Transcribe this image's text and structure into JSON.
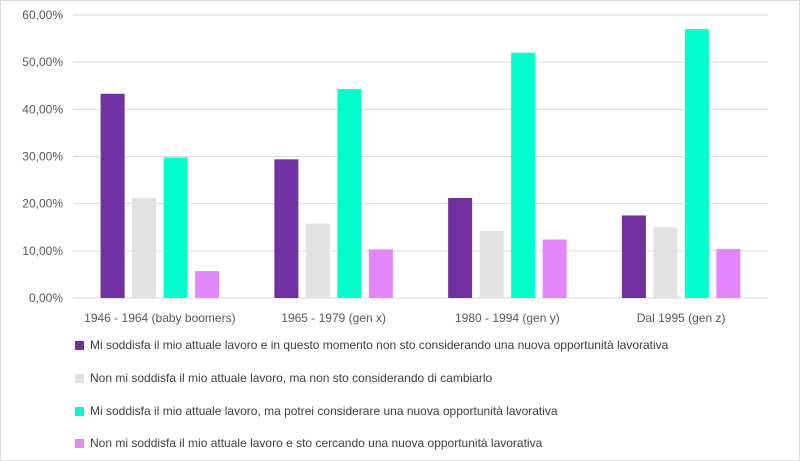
{
  "chart_data": {
    "type": "bar",
    "title": "",
    "categories": [
      "1946 - 1964 (baby boomers)",
      "1965 - 1979 (gen x)",
      "1980 - 1994 (gen y)",
      "Dal 1995 (gen z)"
    ],
    "ylim": [
      0,
      60
    ],
    "yticks": [
      "0,00%",
      "10,00%",
      "20,00%",
      "30,00%",
      "40,00%",
      "50,00%",
      "60,00%"
    ],
    "grid": true,
    "legend_position": "bottom",
    "series": [
      {
        "name": "Mi soddisfa il mio attuale lavoro e in questo momento non sto considerando una nuova opportunità lavorativa",
        "color": "#7030A0",
        "values": [
          43.3,
          29.4,
          21.2,
          17.5
        ]
      },
      {
        "name": "Non mi soddisfa il mio attuale lavoro, ma non sto considerando di cambiarlo",
        "color": "#E3E1E1",
        "values": [
          21.2,
          15.8,
          14.2,
          15.0
        ]
      },
      {
        "name": "Mi soddisfa il mio attuale lavoro, ma potrei considerare una nuova opportunità lavorativa",
        "color": "#00FFCC",
        "values": [
          29.8,
          44.3,
          52.0,
          57.0
        ]
      },
      {
        "name": "Non mi soddisfa il mio attuale lavoro e sto cercando una nuova opportunità lavorativa",
        "color": "#E486FA",
        "values": [
          5.7,
          10.3,
          12.4,
          10.4
        ]
      }
    ]
  }
}
